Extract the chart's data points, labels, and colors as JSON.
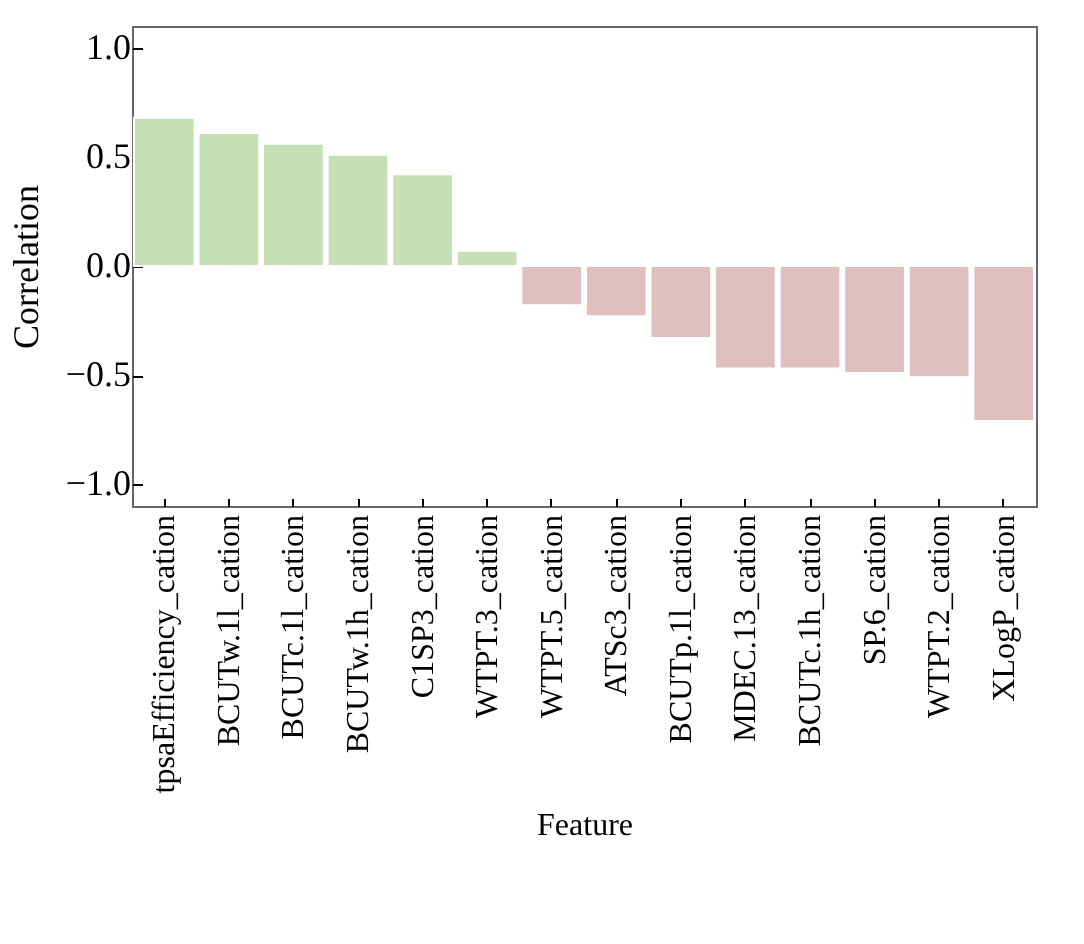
{
  "chart_data": {
    "type": "bar",
    "xlabel": "Feature",
    "ylabel": "Correlation",
    "categories": [
      "tpsaEfficiency_cation",
      "BCUTw.1l_cation",
      "BCUTc.1l_cation",
      "BCUTw.1h_cation",
      "C1SP3_cation",
      "WTPT.3_cation",
      "WTPT.5_cation",
      "ATSc3_cation",
      "BCUTp.1l_cation",
      "MDEC.13_cation",
      "BCUTc.1h_cation",
      "SP.6_cation",
      "WTPT.2_cation",
      "XLogP_cation"
    ],
    "values": [
      0.68,
      0.61,
      0.56,
      0.51,
      0.42,
      0.07,
      -0.18,
      -0.23,
      -0.33,
      -0.47,
      -0.47,
      -0.49,
      -0.51,
      -0.71
    ],
    "colors": [
      "#c5e0b4",
      "#c5e0b4",
      "#c5e0b4",
      "#c5e0b4",
      "#c5e0b4",
      "#c5e0b4",
      "#dfc0bf",
      "#dfc0bf",
      "#dfc0bf",
      "#dfc0bf",
      "#dfc0bf",
      "#dfc0bf",
      "#dfc0bf",
      "#dfc0bf"
    ],
    "ylim": [
      -1.1,
      1.1
    ],
    "yticks": [
      {
        "value": -1,
        "label": "−1.0"
      },
      {
        "value": -0.5,
        "label": "−0.5"
      },
      {
        "value": 0,
        "label": "0.0"
      },
      {
        "value": 0.5,
        "label": "0.5"
      },
      {
        "value": 1,
        "label": "1.0"
      }
    ]
  }
}
